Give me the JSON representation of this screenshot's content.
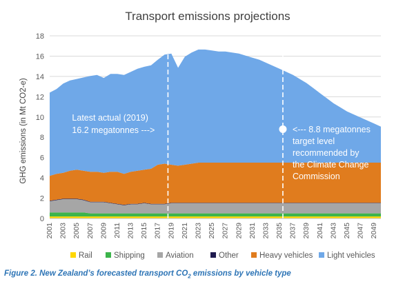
{
  "chart_data": {
    "type": "area",
    "stacked": true,
    "title": "Transport emissions projections",
    "ylabel": "GHG emissions (in Mt CO2-e)",
    "xlabel": "",
    "ylim": [
      0,
      18
    ],
    "yticks": [
      0,
      2,
      4,
      6,
      8,
      10,
      12,
      14,
      16,
      18
    ],
    "xlim": [
      2001,
      2050
    ],
    "xticks": [
      2001,
      2003,
      2005,
      2007,
      2009,
      2011,
      2013,
      2015,
      2017,
      2019,
      2021,
      2023,
      2025,
      2027,
      2029,
      2031,
      2033,
      2035,
      2037,
      2039,
      2041,
      2043,
      2045,
      2047,
      2049
    ],
    "grid": true,
    "legend_position": "bottom",
    "x": [
      2001,
      2002,
      2003,
      2004,
      2005,
      2006,
      2007,
      2008,
      2009,
      2010,
      2011,
      2012,
      2013,
      2014,
      2015,
      2016,
      2017,
      2018,
      2019,
      2020,
      2021,
      2022,
      2023,
      2024,
      2025,
      2026,
      2027,
      2028,
      2029,
      2030,
      2031,
      2032,
      2033,
      2034,
      2035,
      2036,
      2037,
      2038,
      2039,
      2040,
      2041,
      2042,
      2043,
      2044,
      2045,
      2046,
      2047,
      2048,
      2049,
      2050
    ],
    "series": [
      {
        "name": "Rail",
        "color": "#FFD700",
        "values": [
          0.2,
          0.2,
          0.2,
          0.2,
          0.2,
          0.2,
          0.2,
          0.2,
          0.2,
          0.2,
          0.2,
          0.2,
          0.2,
          0.2,
          0.2,
          0.2,
          0.2,
          0.2,
          0.2,
          0.2,
          0.2,
          0.2,
          0.2,
          0.2,
          0.2,
          0.2,
          0.2,
          0.2,
          0.2,
          0.2,
          0.2,
          0.2,
          0.2,
          0.2,
          0.2,
          0.2,
          0.2,
          0.2,
          0.2,
          0.2,
          0.2,
          0.2,
          0.2,
          0.2,
          0.2,
          0.2,
          0.2,
          0.2,
          0.2,
          0.2
        ]
      },
      {
        "name": "Shipping",
        "color": "#3CB44B",
        "values": [
          0.4,
          0.4,
          0.4,
          0.4,
          0.4,
          0.4,
          0.3,
          0.3,
          0.3,
          0.3,
          0.3,
          0.3,
          0.3,
          0.3,
          0.3,
          0.3,
          0.3,
          0.3,
          0.3,
          0.3,
          0.3,
          0.3,
          0.3,
          0.3,
          0.3,
          0.3,
          0.3,
          0.3,
          0.3,
          0.3,
          0.3,
          0.3,
          0.3,
          0.3,
          0.3,
          0.3,
          0.3,
          0.3,
          0.3,
          0.3,
          0.3,
          0.3,
          0.3,
          0.3,
          0.3,
          0.3,
          0.3,
          0.3,
          0.3,
          0.3
        ]
      },
      {
        "name": "Aviation",
        "color": "#A6A6A6",
        "values": [
          1.1,
          1.2,
          1.3,
          1.3,
          1.3,
          1.2,
          1.1,
          1.1,
          1.1,
          1.0,
          0.9,
          0.8,
          0.9,
          0.9,
          1.0,
          0.9,
          0.9,
          0.9,
          1.0,
          1.0,
          1.0,
          1.0,
          1.0,
          1.0,
          1.0,
          1.0,
          1.0,
          1.0,
          1.0,
          1.0,
          1.0,
          1.0,
          1.0,
          1.0,
          1.0,
          1.0,
          1.0,
          1.0,
          1.0,
          1.0,
          1.0,
          1.0,
          1.0,
          1.0,
          1.0,
          1.0,
          1.0,
          1.0,
          1.0,
          1.0
        ]
      },
      {
        "name": "Other",
        "color": "#1F1A4F",
        "values": [
          0.05,
          0.05,
          0.05,
          0.05,
          0.05,
          0.05,
          0.05,
          0.05,
          0.05,
          0.05,
          0.05,
          0.05,
          0.05,
          0.05,
          0.05,
          0.05,
          0.05,
          0.05,
          0.05,
          0.05,
          0.05,
          0.05,
          0.05,
          0.05,
          0.05,
          0.05,
          0.05,
          0.05,
          0.05,
          0.05,
          0.05,
          0.05,
          0.05,
          0.05,
          0.05,
          0.05,
          0.05,
          0.05,
          0.05,
          0.05,
          0.05,
          0.05,
          0.05,
          0.05,
          0.05,
          0.05,
          0.05,
          0.05,
          0.05,
          0.05
        ]
      },
      {
        "name": "Heavy vehicles",
        "color": "#E07C1E",
        "values": [
          2.45,
          2.55,
          2.55,
          2.75,
          2.85,
          2.85,
          2.95,
          2.95,
          2.85,
          3.05,
          3.15,
          3.05,
          3.15,
          3.25,
          3.25,
          3.45,
          3.85,
          3.95,
          3.75,
          3.65,
          3.75,
          3.85,
          3.95,
          3.95,
          3.95,
          3.95,
          3.95,
          3.95,
          3.95,
          3.95,
          3.95,
          3.95,
          3.95,
          3.95,
          3.95,
          3.95,
          3.95,
          3.95,
          3.95,
          3.95,
          3.95,
          3.95,
          3.95,
          3.95,
          3.95,
          3.95,
          3.95,
          3.95,
          3.95,
          3.95
        ]
      },
      {
        "name": "Light vehicles",
        "color": "#6FA8E8",
        "values": [
          8.2,
          8.35,
          8.8,
          8.9,
          8.95,
          9.2,
          9.45,
          9.55,
          9.35,
          9.65,
          9.65,
          9.75,
          9.85,
          10.05,
          10.15,
          10.2,
          10.35,
          10.75,
          10.95,
          9.65,
          10.65,
          10.95,
          11.15,
          11.15,
          11.05,
          10.95,
          10.95,
          10.85,
          10.75,
          10.55,
          10.35,
          10.15,
          9.85,
          9.55,
          9.25,
          8.95,
          8.65,
          8.25,
          7.85,
          7.35,
          6.85,
          6.35,
          5.85,
          5.45,
          5.05,
          4.75,
          4.45,
          4.15,
          3.85,
          3.55
        ]
      }
    ],
    "annotations": [
      {
        "text_lines": [
          "Latest actual (2019)",
          "16.2 megatonnes --->"
        ],
        "x": 2019,
        "y": 16.2
      },
      {
        "text_lines": [
          "<--- 8.8 megatonnes",
          "target level",
          "recommended by",
          "the Climate Change",
          "Commission"
        ],
        "x": 2035,
        "y": 8.8
      }
    ],
    "dashed_lines": [
      2018.5,
      2035.5
    ]
  },
  "caption": {
    "prefix": "Figure 2. New Zealand’s forecasted transport CO",
    "subscript": "2",
    "suffix": " emissions by vehicle type"
  }
}
